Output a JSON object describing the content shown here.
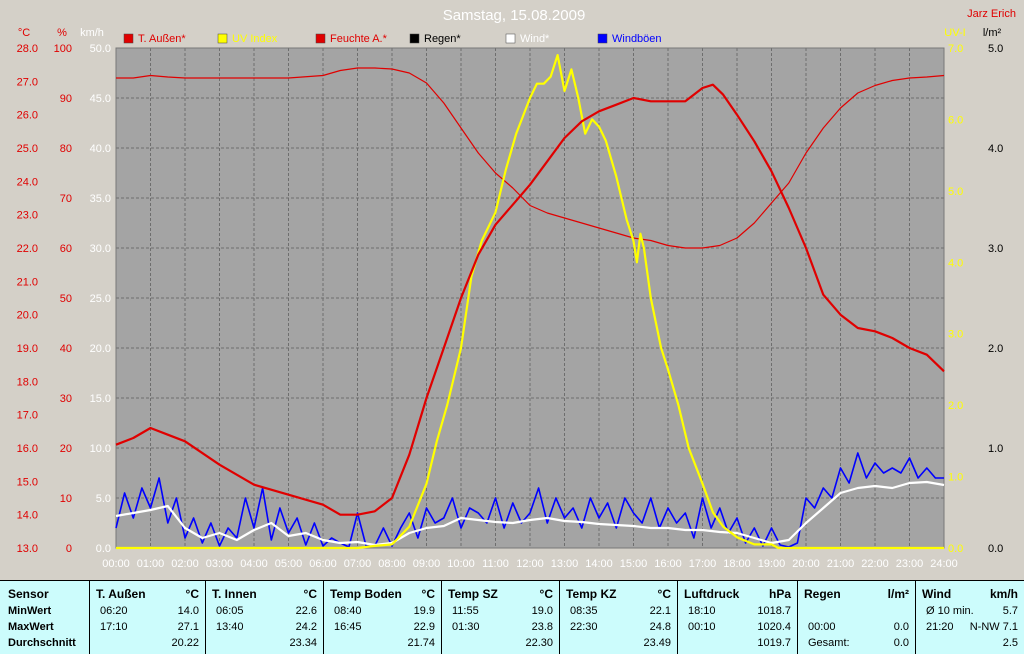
{
  "chart_data": {
    "type": "line",
    "title": "Samstag, 15.08.2009",
    "author": "Jarz Erich",
    "x_ticks": [
      "00:00",
      "01:00",
      "02:00",
      "03:00",
      "04:00",
      "05:00",
      "06:00",
      "07:00",
      "08:00",
      "09:00",
      "10:00",
      "11:00",
      "12:00",
      "13:00",
      "14:00",
      "15:00",
      "16:00",
      "17:00",
      "18:00",
      "19:00",
      "20:00",
      "21:00",
      "22:00",
      "23:00",
      "24:00"
    ],
    "axes": {
      "temp": {
        "unit": "°C",
        "min": 13.0,
        "max": 28.0,
        "ticks": [
          "13.0",
          "14.0",
          "15.0",
          "16.0",
          "17.0",
          "18.0",
          "19.0",
          "20.0",
          "21.0",
          "22.0",
          "23.0",
          "24.0",
          "25.0",
          "26.0",
          "27.0",
          "28.0"
        ],
        "color": "#e00000"
      },
      "hum": {
        "unit": "%",
        "min": 0,
        "max": 100,
        "ticks": [
          "0",
          "10",
          "20",
          "30",
          "40",
          "50",
          "60",
          "70",
          "80",
          "90",
          "100"
        ],
        "color": "#e00000"
      },
      "wind": {
        "unit": "km/h",
        "min": 0,
        "max": 50,
        "ticks": [
          "0.0",
          "5.0",
          "10.0",
          "15.0",
          "20.0",
          "25.0",
          "30.0",
          "35.0",
          "40.0",
          "45.0",
          "50.0"
        ],
        "color": "#ffffff"
      },
      "uv": {
        "unit": "UV-I",
        "min": 0,
        "max": 7,
        "ticks": [
          "0.0",
          "1.0",
          "2.0",
          "3.0",
          "4.0",
          "5.0",
          "6.0",
          "7.0"
        ],
        "color": "#ffff00"
      },
      "rain": {
        "unit": "l/m²",
        "min": 0,
        "max": 5,
        "ticks": [
          "0.0",
          "1.0",
          "2.0",
          "3.0",
          "4.0",
          "5.0"
        ],
        "color": "#000000"
      }
    },
    "legend": [
      {
        "name": "T. Außen*",
        "color": "#e00000"
      },
      {
        "name": "UV Index",
        "color": "#ffff00"
      },
      {
        "name": "Feuchte A.*",
        "color": "#e00000"
      },
      {
        "name": "Regen*",
        "color": "#000000"
      },
      {
        "name": "Wind*",
        "color": "#ffffff"
      },
      {
        "name": "Windböen",
        "color": "#0000ff"
      }
    ],
    "series": [
      {
        "name": "T. Außen*",
        "axis": "temp",
        "color": "#e00000",
        "width": 2.2,
        "x": [
          0,
          0.5,
          1,
          1.5,
          2,
          3,
          4,
          5,
          6,
          6.5,
          7,
          7.5,
          8,
          8.5,
          9,
          9.5,
          10,
          10.5,
          11,
          11.5,
          12,
          12.5,
          13,
          13.5,
          14,
          14.5,
          15,
          15.5,
          16,
          16.5,
          17,
          17.3,
          17.6,
          18,
          18.5,
          19,
          19.5,
          20,
          20.5,
          21,
          21.5,
          22,
          22.5,
          23,
          23.5,
          24
        ],
        "y": [
          16.1,
          16.3,
          16.6,
          16.4,
          16.2,
          15.5,
          14.9,
          14.6,
          14.3,
          14.0,
          14.0,
          14.1,
          14.5,
          15.8,
          17.5,
          19.0,
          20.5,
          21.8,
          22.7,
          23.3,
          23.9,
          24.6,
          25.3,
          25.8,
          26.1,
          26.3,
          26.5,
          26.4,
          26.4,
          26.4,
          26.8,
          26.9,
          26.6,
          26.0,
          25.2,
          24.3,
          23.2,
          22.0,
          20.6,
          20.0,
          19.6,
          19.5,
          19.3,
          19.0,
          18.8,
          18.3
        ]
      },
      {
        "name": "Feuchte A.*",
        "axis": "hum",
        "color": "#e00000",
        "width": 1.2,
        "x": [
          0,
          0.5,
          1,
          1.5,
          2,
          3,
          4,
          5,
          6,
          6.5,
          7,
          7.5,
          8,
          8.5,
          9,
          9.5,
          10,
          10.5,
          11,
          11.5,
          12,
          12.5,
          13,
          13.5,
          14,
          14.5,
          15,
          15.5,
          16,
          16.5,
          17,
          17.5,
          18,
          18.5,
          19,
          19.5,
          20,
          20.5,
          21,
          21.5,
          22,
          22.5,
          23,
          23.5,
          24
        ],
        "y": [
          94,
          94,
          94.5,
          94.2,
          94,
          94,
          94,
          94,
          94.5,
          95.5,
          96,
          96,
          95.8,
          95,
          93,
          89,
          84,
          79,
          75,
          72,
          68.5,
          67,
          66,
          65,
          64,
          63,
          62,
          61.5,
          60.5,
          60,
          60,
          60.5,
          62,
          65,
          69,
          73,
          79,
          84,
          88,
          91,
          92.5,
          93.5,
          94,
          94.2,
          94.5
        ]
      },
      {
        "name": "UV Index",
        "axis": "uv",
        "color": "#ffff00",
        "width": 2.2,
        "x": [
          0,
          7,
          7.5,
          8,
          8.5,
          9,
          9.3,
          9.6,
          10,
          10.3,
          10.6,
          11,
          11.3,
          11.6,
          12,
          12.2,
          12.4,
          12.6,
          12.8,
          13,
          13.2,
          13.4,
          13.6,
          13.8,
          14,
          14.2,
          14.5,
          14.8,
          15,
          15.1,
          15.2,
          15.3,
          15.5,
          15.8,
          16,
          16.3,
          16.6,
          17,
          17.3,
          17.6,
          18,
          18.5,
          19,
          19.2,
          24
        ],
        "y": [
          0,
          0,
          0.03,
          0.05,
          0.3,
          0.9,
          1.5,
          2.0,
          2.8,
          3.8,
          4.3,
          4.7,
          5.3,
          5.8,
          6.3,
          6.5,
          6.5,
          6.6,
          6.9,
          6.4,
          6.7,
          6.3,
          5.8,
          6.0,
          5.9,
          5.7,
          5.2,
          4.6,
          4.3,
          4.0,
          4.4,
          4.2,
          3.5,
          2.8,
          2.5,
          2.0,
          1.4,
          0.9,
          0.5,
          0.3,
          0.15,
          0.05,
          0.05,
          0,
          0
        ]
      },
      {
        "name": "Wind*",
        "axis": "wind",
        "color": "#ffffff",
        "width": 2.2,
        "x": [
          0,
          0.5,
          1,
          1.5,
          2,
          2.5,
          3,
          3.5,
          4,
          4.5,
          5,
          5.5,
          6,
          6.5,
          7,
          7.5,
          8,
          8.5,
          9,
          9.5,
          10,
          10.5,
          11,
          11.5,
          12,
          12.5,
          13,
          13.5,
          14,
          14.5,
          15,
          15.5,
          16,
          16.5,
          17,
          17.5,
          18,
          18.5,
          19,
          19.5,
          20,
          20.5,
          21,
          21.5,
          22,
          22.5,
          23,
          23.5,
          24
        ],
        "y": [
          3.2,
          3.5,
          3.8,
          4.2,
          2.0,
          1.0,
          1.5,
          0.8,
          1.8,
          2.5,
          1.2,
          1.5,
          0.8,
          0.5,
          0.6,
          0.3,
          0.5,
          1.5,
          2.0,
          2.2,
          3.0,
          2.8,
          2.6,
          2.5,
          2.8,
          3.0,
          2.7,
          2.6,
          2.4,
          2.3,
          2.2,
          2.0,
          2.0,
          1.8,
          1.8,
          1.6,
          1.5,
          1.0,
          0.5,
          0.8,
          2.5,
          4.0,
          5.5,
          6.0,
          6.2,
          6.0,
          6.5,
          6.6,
          6.3
        ]
      },
      {
        "name": "Windböen",
        "axis": "wind",
        "color": "#0000ff",
        "width": 1.6,
        "x": [
          0,
          0.25,
          0.5,
          0.75,
          1,
          1.25,
          1.5,
          1.75,
          2,
          2.25,
          2.5,
          2.75,
          3,
          3.25,
          3.5,
          3.75,
          4,
          4.25,
          4.5,
          4.75,
          5,
          5.25,
          5.5,
          5.75,
          6,
          6.25,
          6.5,
          6.75,
          7,
          7.25,
          7.5,
          7.75,
          8,
          8.25,
          8.5,
          8.75,
          9,
          9.25,
          9.5,
          9.75,
          10,
          10.25,
          10.5,
          10.75,
          11,
          11.25,
          11.5,
          11.75,
          12,
          12.25,
          12.5,
          12.75,
          13,
          13.25,
          13.5,
          13.75,
          14,
          14.25,
          14.5,
          14.75,
          15,
          15.25,
          15.5,
          15.75,
          16,
          16.25,
          16.5,
          16.75,
          17,
          17.25,
          17.5,
          17.75,
          18,
          18.25,
          18.5,
          18.75,
          19,
          19.25,
          19.5,
          19.75,
          20,
          20.25,
          20.5,
          20.75,
          21,
          21.25,
          21.5,
          21.75,
          22,
          22.25,
          22.5,
          22.75,
          23,
          23.25,
          23.5,
          23.75,
          24
        ],
        "y": [
          2.0,
          5.5,
          3.0,
          6.0,
          4.0,
          7.0,
          2.5,
          5.0,
          1.0,
          3.0,
          0.5,
          2.5,
          0.2,
          2.0,
          1.0,
          5.0,
          2.0,
          6.0,
          0.8,
          4.0,
          1.5,
          3.0,
          0.3,
          2.5,
          0.2,
          1.0,
          0.5,
          0.1,
          3.5,
          0.2,
          0.2,
          2.0,
          0.2,
          2.0,
          3.5,
          1.0,
          4.0,
          2.5,
          3.0,
          5.0,
          2.0,
          4.0,
          3.5,
          2.5,
          5.0,
          2.0,
          4.5,
          2.5,
          3.5,
          6.0,
          2.5,
          5.0,
          3.0,
          4.0,
          2.0,
          5.0,
          3.0,
          4.5,
          2.0,
          5.0,
          3.5,
          2.5,
          5.0,
          2.0,
          4.0,
          2.5,
          3.5,
          1.0,
          5.0,
          2.0,
          4.0,
          1.5,
          3.0,
          0.5,
          2.0,
          0.2,
          2.0,
          0.3,
          0.1,
          0.5,
          5.0,
          4.0,
          6.0,
          5.0,
          8.0,
          6.5,
          9.5,
          7.0,
          8.5,
          7.5,
          8.0,
          7.5,
          9.0,
          7.0,
          8.0,
          7.0,
          7.0
        ]
      }
    ]
  },
  "table": {
    "row_labels": [
      "Sensor",
      "MinWert",
      "MaxWert",
      "Durchschnitt"
    ],
    "columns": [
      {
        "name": "T. Außen",
        "unit": "°C",
        "min_time": "06:20",
        "min": "14.0",
        "max_time": "17:10",
        "max": "27.1",
        "avg": "20.22"
      },
      {
        "name": "T. Innen",
        "unit": "°C",
        "min_time": "06:05",
        "min": "22.6",
        "max_time": "13:40",
        "max": "24.2",
        "avg": "23.34"
      },
      {
        "name": "Temp Boden",
        "unit": "°C",
        "min_time": "08:40",
        "min": "19.9",
        "max_time": "16:45",
        "max": "22.9",
        "avg": "21.74"
      },
      {
        "name": "Temp SZ",
        "unit": "°C",
        "min_time": "11:55",
        "min": "19.0",
        "max_time": "01:30",
        "max": "23.8",
        "avg": "22.30"
      },
      {
        "name": "Temp KZ",
        "unit": "°C",
        "min_time": "08:35",
        "min": "22.1",
        "max_time": "22:30",
        "max": "24.8",
        "avg": "23.49"
      },
      {
        "name": "Luftdruck",
        "unit": "hPa",
        "min_time": "18:10",
        "min": "1018.7",
        "max_time": "00:10",
        "max": "1020.4",
        "avg": "1019.7"
      },
      {
        "name": "Regen",
        "unit": "l/m²",
        "min_time": "",
        "min": "",
        "max_time": "00:00",
        "max": "0.0",
        "avg_label": "Gesamt:",
        "avg": "0.0"
      },
      {
        "name": "Wind",
        "unit": "km/h",
        "min_time": "Ø 10 min.",
        "min": "5.7",
        "max_time": "21:20",
        "max": "N-NW 7.1",
        "avg": "2.5"
      }
    ]
  }
}
